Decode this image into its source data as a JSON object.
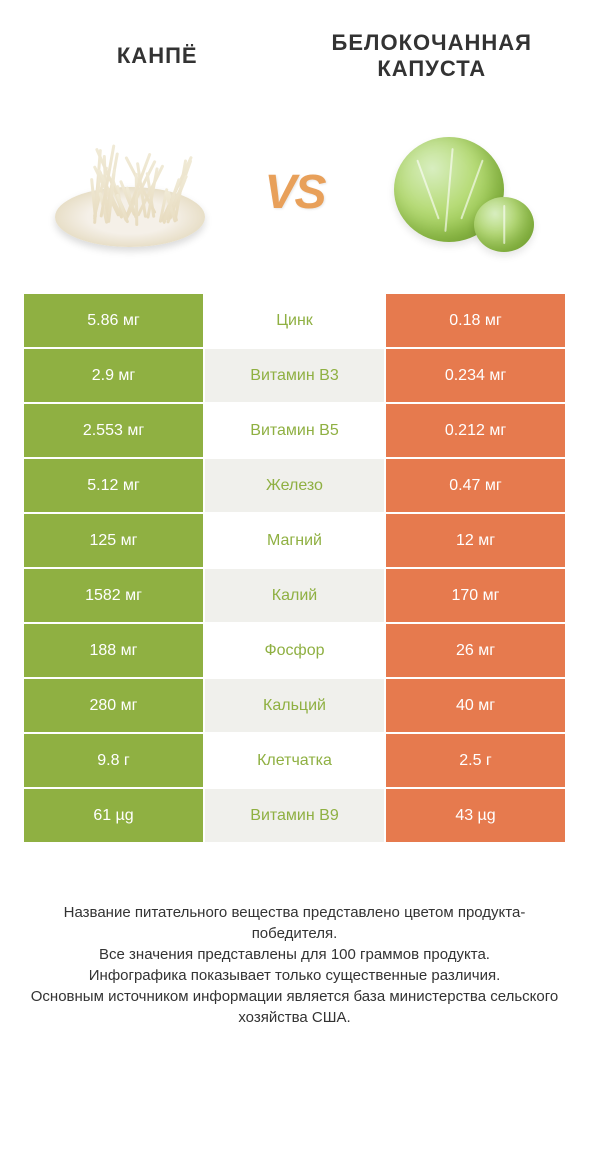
{
  "header": {
    "left_title": "КАНПЁ",
    "right_title": "БЕЛОКОЧАННАЯ КАПУСТА",
    "vs_label": "VS"
  },
  "colors": {
    "left_col": "#8fb042",
    "right_col": "#e67a4e",
    "mid_bg_even": "#ffffff",
    "mid_bg_odd": "#f0f0ec",
    "mid_text_left_winner": "#8fb042",
    "mid_text_right_winner": "#e67a4e"
  },
  "table": {
    "rows": [
      {
        "left": "5.86 мг",
        "label": "Цинк",
        "right": "0.18 мг",
        "winner": "left"
      },
      {
        "left": "2.9 мг",
        "label": "Витамин B3",
        "right": "0.234 мг",
        "winner": "left"
      },
      {
        "left": "2.553 мг",
        "label": "Витамин B5",
        "right": "0.212 мг",
        "winner": "left"
      },
      {
        "left": "5.12 мг",
        "label": "Железо",
        "right": "0.47 мг",
        "winner": "left"
      },
      {
        "left": "125 мг",
        "label": "Магний",
        "right": "12 мг",
        "winner": "left"
      },
      {
        "left": "1582 мг",
        "label": "Калий",
        "right": "170 мг",
        "winner": "left"
      },
      {
        "left": "188 мг",
        "label": "Фосфор",
        "right": "26 мг",
        "winner": "left"
      },
      {
        "left": "280 мг",
        "label": "Кальций",
        "right": "40 мг",
        "winner": "left"
      },
      {
        "left": "9.8 г",
        "label": "Клетчатка",
        "right": "2.5 г",
        "winner": "left"
      },
      {
        "left": "61 µg",
        "label": "Витамин B9",
        "right": "43 µg",
        "winner": "left"
      }
    ]
  },
  "footer": {
    "line1": "Название питательного вещества представлено цветом продукта-победителя.",
    "line2": "Все значения представлены для 100 граммов продукта.",
    "line3": "Инфографика показывает только существенные различия.",
    "line4": "Основным источником информации является база министерства сельского хозяйства США."
  }
}
